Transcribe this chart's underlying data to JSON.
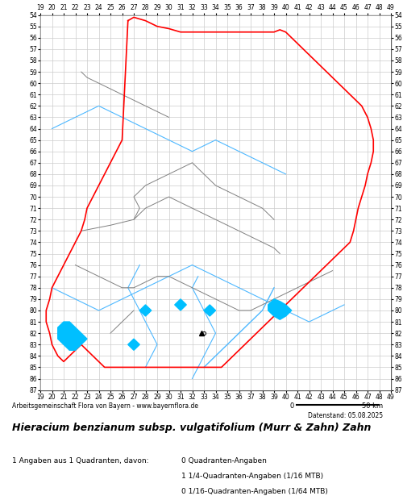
{
  "title": "Hieracium benzianum subsp. vulgatifolium (Murr & Zahn) Zahn",
  "subtitle": "Datenstand: 05.08.2025",
  "credit": "Arbeitsgemeinschaft Flora von Bayern - www.bayernflora.de",
  "scale_label": "50 km",
  "stats_line1": "1 Angaben aus 1 Quadranten, davon:",
  "stats_col2_line1": "0 Quadranten-Angaben",
  "stats_col2_line2": "1 1/4-Quadranten-Angaben (1/16 MTB)",
  "stats_col2_line3": "0 1/16-Quadranten-Angaben (1/64 MTB)",
  "x_ticks": [
    19,
    20,
    21,
    22,
    23,
    24,
    25,
    26,
    27,
    28,
    29,
    30,
    31,
    32,
    33,
    34,
    35,
    36,
    37,
    38,
    39,
    40,
    41,
    42,
    43,
    44,
    45,
    46,
    47,
    48,
    49
  ],
  "y_ticks": [
    54,
    55,
    56,
    57,
    58,
    59,
    60,
    61,
    62,
    63,
    64,
    65,
    66,
    67,
    68,
    69,
    70,
    71,
    72,
    73,
    74,
    75,
    76,
    77,
    78,
    79,
    80,
    81,
    82,
    83,
    84,
    85,
    86,
    87
  ],
  "background_color": "#ffffff",
  "grid_color": "#cccccc",
  "map_area_bg": "#ffffff",
  "fig_width": 5.0,
  "fig_height": 6.2
}
